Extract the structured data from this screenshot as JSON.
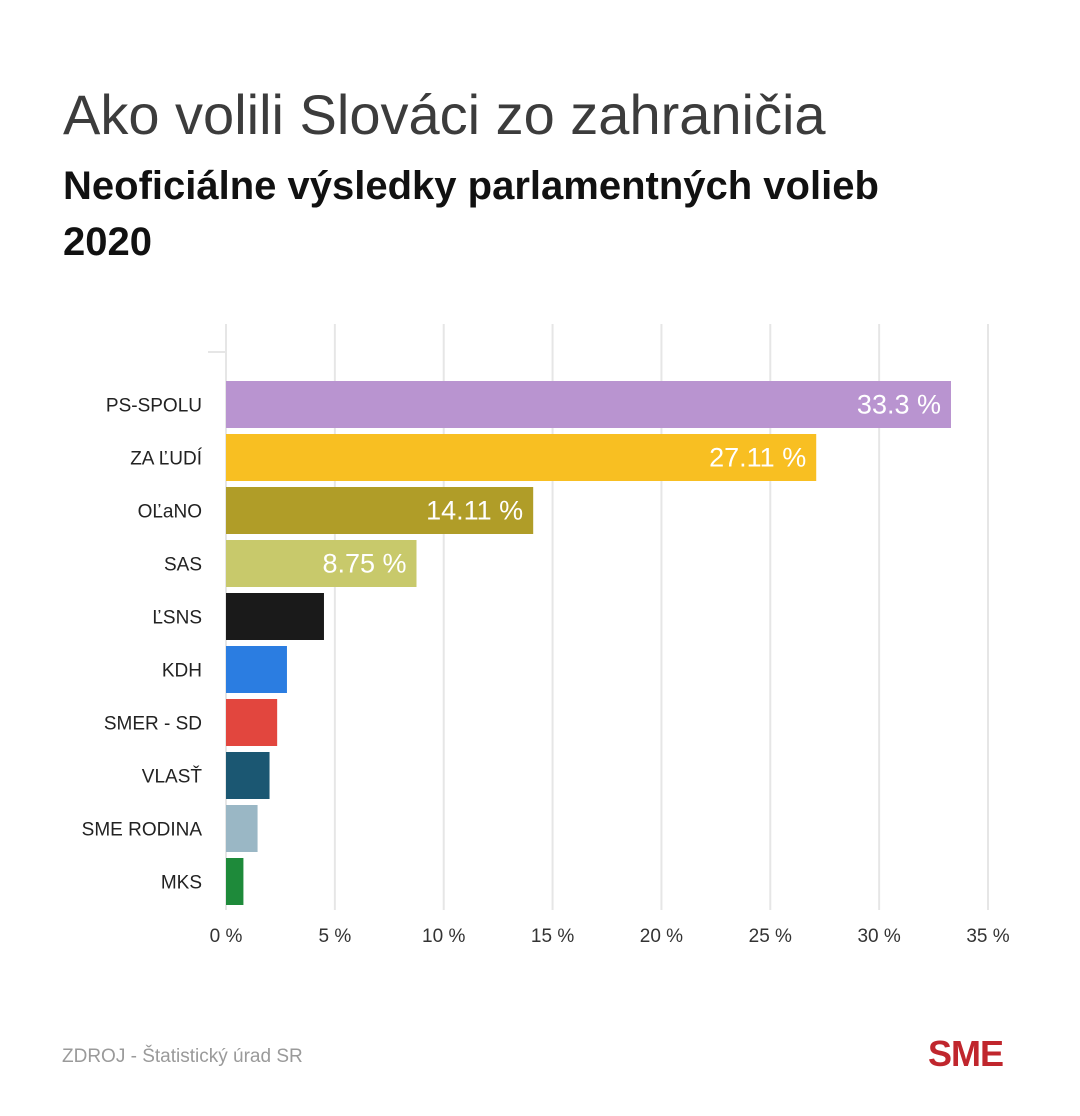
{
  "header": {
    "title": "Ako volili Slováci zo zahraničia",
    "subtitle": "Neoficiálne výsledky parlamentných volieb 2020"
  },
  "footer": {
    "source": "ZDROJ - Štatistický úrad SR",
    "logo": "SME"
  },
  "chart_data": {
    "type": "bar",
    "orientation": "horizontal",
    "title": "Ako volili Slováci zo zahraničia",
    "subtitle": "Neoficiálne výsledky parlamentných volieb 2020",
    "xlabel": "",
    "ylabel": "",
    "xlim": [
      0,
      35
    ],
    "grid": true,
    "legend": "none",
    "x_ticks": [
      "0 %",
      "5 %",
      "10 %",
      "15 %",
      "20 %",
      "25 %",
      "30 %",
      "35 %"
    ],
    "x_tick_values": [
      0,
      5,
      10,
      15,
      20,
      25,
      30,
      35
    ],
    "categories": [
      "PS-SPOLU",
      "ZA ĽUDÍ",
      "OĽaNO",
      "SAS",
      "ĽSNS",
      "KDH",
      "SMER - SD",
      "VLASŤ",
      "SME RODINA",
      "MKS"
    ],
    "values": [
      33.3,
      27.11,
      14.11,
      8.75,
      4.5,
      2.8,
      2.35,
      2.0,
      1.45,
      0.8
    ],
    "value_labels": [
      "33.3 %",
      "27.11 %",
      "14.11 %",
      "8.75 %",
      "",
      "",
      "",
      "",
      "",
      ""
    ],
    "colors": [
      "#b994d0",
      "#f8bf22",
      "#b09d28",
      "#c8c96b",
      "#1a1a1a",
      "#2b7de1",
      "#e2463e",
      "#1b5772",
      "#9ab7c5",
      "#1e8a3a"
    ]
  }
}
